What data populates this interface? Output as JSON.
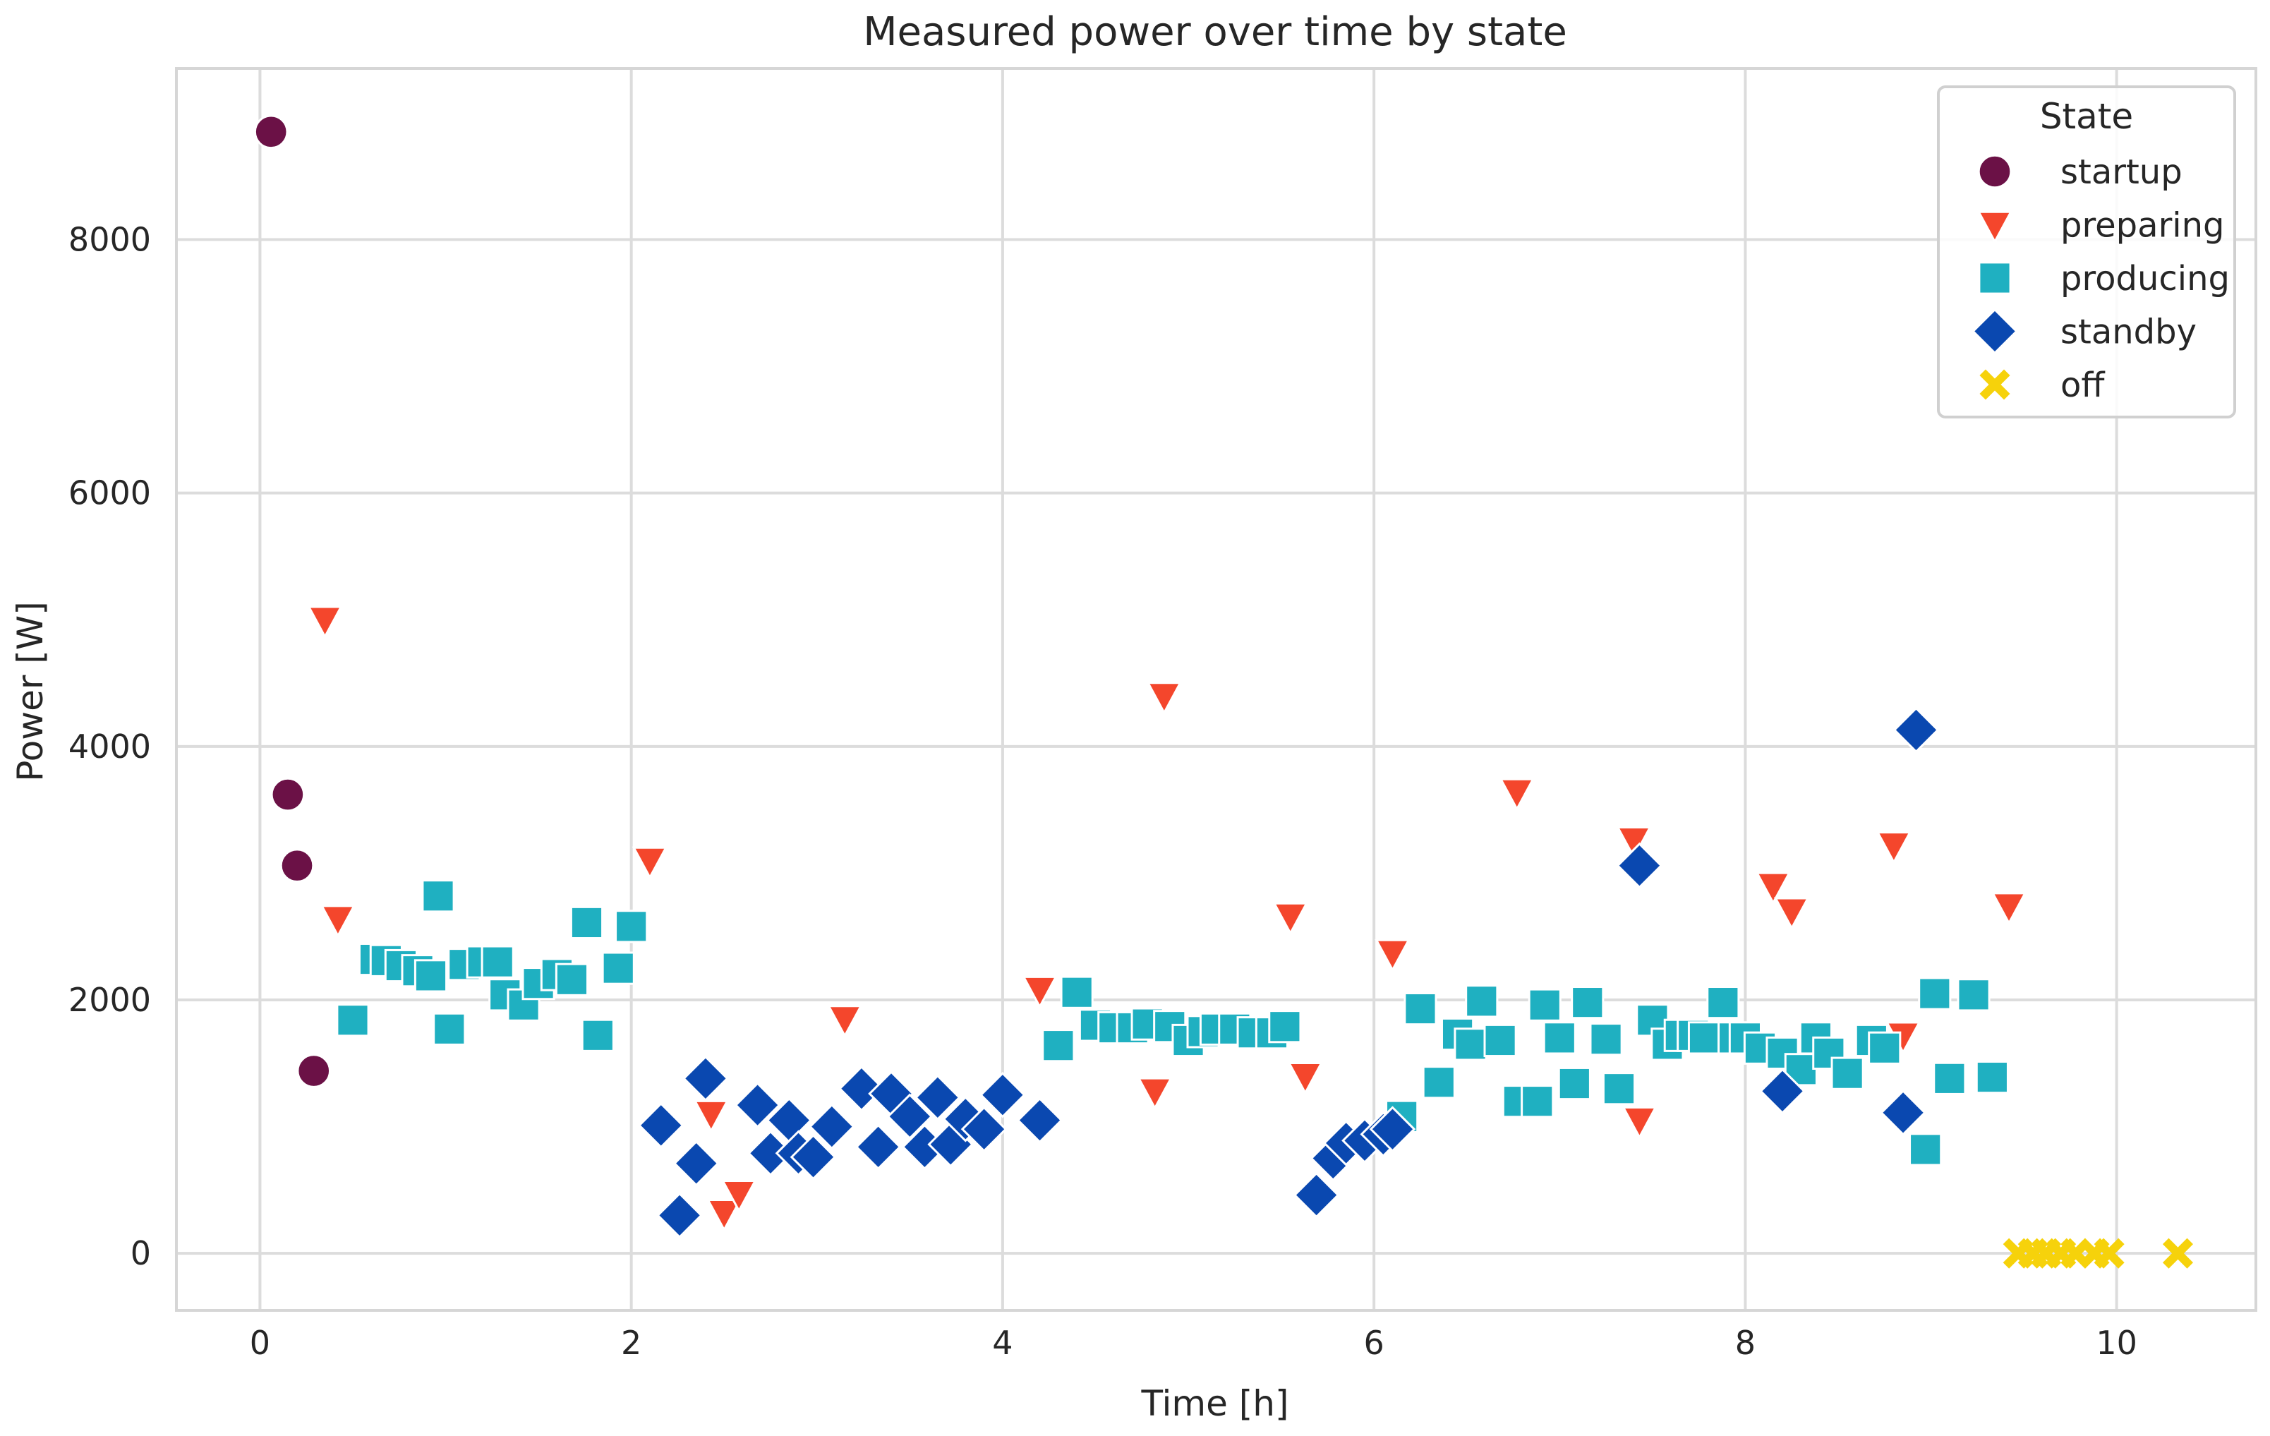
{
  "chart_data": {
    "type": "scatter",
    "title": "Measured power over time by state",
    "xlabel": "Time [h]",
    "ylabel": "Power [W]",
    "xlim": [
      -0.45,
      10.75
    ],
    "ylim": [
      -450,
      9350
    ],
    "xticks": [
      0,
      2,
      4,
      6,
      8,
      10
    ],
    "yticks": [
      0,
      2000,
      4000,
      6000,
      8000
    ],
    "grid": true,
    "legend": {
      "title": "State",
      "position": "top-right"
    },
    "series": [
      {
        "name": "startup",
        "marker": "circle",
        "color": "#6b1146",
        "points": [
          [
            0.06,
            8850
          ],
          [
            0.15,
            3620
          ],
          [
            0.2,
            3060
          ],
          [
            0.29,
            1440
          ]
        ]
      },
      {
        "name": "preparing",
        "marker": "triangle-down",
        "color": "#f4462c",
        "points": [
          [
            0.35,
            5000
          ],
          [
            0.42,
            2640
          ],
          [
            2.1,
            3100
          ],
          [
            2.43,
            1100
          ],
          [
            2.5,
            320
          ],
          [
            2.58,
            470
          ],
          [
            3.15,
            1850
          ],
          [
            4.2,
            2080
          ],
          [
            4.82,
            1280
          ],
          [
            4.87,
            4400
          ],
          [
            5.55,
            2660
          ],
          [
            5.63,
            1400
          ],
          [
            6.1,
            2370
          ],
          [
            6.77,
            3640
          ],
          [
            7.4,
            3260
          ],
          [
            7.43,
            1050
          ],
          [
            8.15,
            2900
          ],
          [
            8.25,
            2700
          ],
          [
            8.8,
            3220
          ],
          [
            8.85,
            1720
          ],
          [
            9.42,
            2740
          ]
        ]
      },
      {
        "name": "producing",
        "marker": "square",
        "color": "#1fb0c1",
        "points": [
          [
            0.5,
            1840
          ],
          [
            0.62,
            2320
          ],
          [
            0.68,
            2310
          ],
          [
            0.76,
            2270
          ],
          [
            0.85,
            2230
          ],
          [
            0.92,
            2190
          ],
          [
            0.96,
            2820
          ],
          [
            1.02,
            1770
          ],
          [
            1.1,
            2280
          ],
          [
            1.2,
            2300
          ],
          [
            1.28,
            2300
          ],
          [
            1.32,
            2040
          ],
          [
            1.42,
            1960
          ],
          [
            1.5,
            2130
          ],
          [
            1.6,
            2200
          ],
          [
            1.68,
            2160
          ],
          [
            1.76,
            2610
          ],
          [
            1.82,
            1720
          ],
          [
            1.93,
            2250
          ],
          [
            2.0,
            2580
          ],
          [
            4.3,
            1640
          ],
          [
            4.4,
            2060
          ],
          [
            4.5,
            1800
          ],
          [
            4.6,
            1780
          ],
          [
            4.7,
            1780
          ],
          [
            4.78,
            1810
          ],
          [
            4.9,
            1790
          ],
          [
            5.0,
            1680
          ],
          [
            5.08,
            1750
          ],
          [
            5.15,
            1770
          ],
          [
            5.25,
            1770
          ],
          [
            5.35,
            1740
          ],
          [
            5.45,
            1740
          ],
          [
            5.52,
            1790
          ],
          [
            6.15,
            1080
          ],
          [
            6.25,
            1930
          ],
          [
            6.35,
            1350
          ],
          [
            6.45,
            1730
          ],
          [
            6.52,
            1650
          ],
          [
            6.58,
            1990
          ],
          [
            6.68,
            1680
          ],
          [
            6.78,
            1200
          ],
          [
            6.88,
            1200
          ],
          [
            6.92,
            1960
          ],
          [
            7.0,
            1700
          ],
          [
            7.08,
            1340
          ],
          [
            7.15,
            1980
          ],
          [
            7.25,
            1690
          ],
          [
            7.32,
            1300
          ],
          [
            7.5,
            1840
          ],
          [
            7.58,
            1650
          ],
          [
            7.65,
            1720
          ],
          [
            7.72,
            1720
          ],
          [
            7.78,
            1700
          ],
          [
            7.88,
            1980
          ],
          [
            7.94,
            1700
          ],
          [
            8.0,
            1700
          ],
          [
            8.08,
            1620
          ],
          [
            8.2,
            1580
          ],
          [
            8.3,
            1450
          ],
          [
            8.38,
            1700
          ],
          [
            8.45,
            1580
          ],
          [
            8.55,
            1420
          ],
          [
            8.68,
            1680
          ],
          [
            8.75,
            1620
          ],
          [
            8.97,
            820
          ],
          [
            9.02,
            2050
          ],
          [
            9.1,
            1380
          ],
          [
            9.23,
            2040
          ],
          [
            9.33,
            1390
          ]
        ]
      },
      {
        "name": "standby",
        "marker": "diamond",
        "color": "#0a48b0",
        "points": [
          [
            2.16,
            1010
          ],
          [
            2.26,
            300
          ],
          [
            2.35,
            710
          ],
          [
            2.4,
            1380
          ],
          [
            2.68,
            1170
          ],
          [
            2.75,
            790
          ],
          [
            2.85,
            1050
          ],
          [
            2.9,
            790
          ],
          [
            2.98,
            760
          ],
          [
            3.08,
            1000
          ],
          [
            3.24,
            1300
          ],
          [
            3.33,
            840
          ],
          [
            3.4,
            1260
          ],
          [
            3.5,
            1080
          ],
          [
            3.58,
            840
          ],
          [
            3.65,
            1230
          ],
          [
            3.72,
            860
          ],
          [
            3.8,
            1060
          ],
          [
            3.9,
            980
          ],
          [
            4.0,
            1250
          ],
          [
            4.2,
            1050
          ],
          [
            5.69,
            460
          ],
          [
            5.78,
            750
          ],
          [
            5.85,
            870
          ],
          [
            5.95,
            890
          ],
          [
            6.05,
            940
          ],
          [
            6.1,
            980
          ],
          [
            7.43,
            3060
          ],
          [
            8.2,
            1280
          ],
          [
            8.85,
            1110
          ],
          [
            8.92,
            4130
          ]
        ]
      },
      {
        "name": "off",
        "marker": "x",
        "color": "#f6d20b",
        "points": [
          [
            9.47,
            0
          ],
          [
            9.55,
            0
          ],
          [
            9.62,
            0
          ],
          [
            9.7,
            0
          ],
          [
            9.78,
            0
          ],
          [
            9.88,
            0
          ],
          [
            9.96,
            0
          ],
          [
            10.33,
            0
          ]
        ]
      }
    ]
  }
}
